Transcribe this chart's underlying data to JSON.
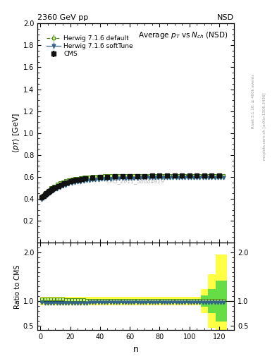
{
  "title": "Average $p_T$ vs $N_{ch}$ (NSD)",
  "top_left_label": "2360 GeV pp",
  "top_right_label": "NSD",
  "ylabel_main": "$\\langle p_T \\rangle$ [GeV]",
  "ylabel_ratio": "Ratio to CMS",
  "xlabel": "n",
  "watermark": "CMS_2011_S8884919",
  "right_label1": "Rivet 3.1.10, ≥ 400k events",
  "right_label2": "mcplots.cern.ch [arXiv:1306.3436]",
  "ylim_main": [
    0.0,
    2.0
  ],
  "ylim_ratio": [
    0.4,
    2.2
  ],
  "xlim": [
    -2,
    130
  ],
  "cms_color": "#111111",
  "herwig_default_color": "#55bb22",
  "herwig_default_line": "#448811",
  "herwig_softtune_color": "#336688",
  "band_yellow": "#ffff44",
  "band_green": "#66dd44"
}
